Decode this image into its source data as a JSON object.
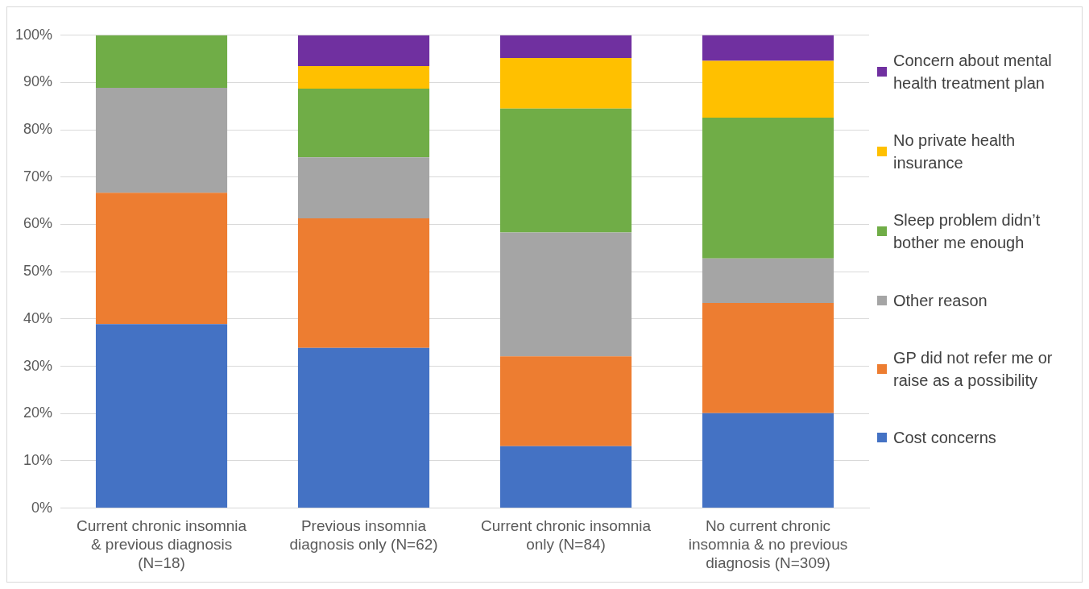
{
  "chart_data": {
    "type": "bar",
    "stacked": true,
    "categories": [
      "Current chronic insomnia & previous diagnosis (N=18)",
      "Previous insomnia diagnosis only (N=62)",
      "Current chronic insomnia only (N=84)",
      "No current chronic insomnia & no previous diagnosis (N=309)"
    ],
    "series": [
      {
        "name": "Cost concerns",
        "color": "#4472c4",
        "values": [
          38.9,
          33.9,
          13.1,
          20.1
        ]
      },
      {
        "name": "GP did not refer me or raise as a possibility",
        "color": "#ed7d31",
        "values": [
          27.8,
          27.4,
          19.0,
          23.3
        ]
      },
      {
        "name": "Other reason",
        "color": "#a5a5a5",
        "values": [
          22.2,
          12.9,
          26.2,
          9.4
        ]
      },
      {
        "name": "Sleep problem didn’t bother me enough",
        "color": "#70ad47",
        "values": [
          11.1,
          14.5,
          26.2,
          29.8
        ]
      },
      {
        "name": "No private health insurance",
        "color": "#ffc000",
        "values": [
          0,
          4.8,
          10.7,
          12.0
        ]
      },
      {
        "name": "Concern about mental health treatment plan",
        "color": "#7030a0",
        "values": [
          0,
          6.5,
          4.8,
          5.5
        ]
      }
    ],
    "ylim": [
      0,
      100
    ],
    "yticks": [
      {
        "value": 0,
        "label": "0%"
      },
      {
        "value": 10,
        "label": "10%"
      },
      {
        "value": 20,
        "label": "20%"
      },
      {
        "value": 30,
        "label": "30%"
      },
      {
        "value": 40,
        "label": "40%"
      },
      {
        "value": 50,
        "label": "50%"
      },
      {
        "value": 60,
        "label": "60%"
      },
      {
        "value": 70,
        "label": "70%"
      },
      {
        "value": 80,
        "label": "80%"
      },
      {
        "value": 90,
        "label": "90%"
      },
      {
        "value": 100,
        "label": "100%"
      }
    ],
    "grid": "y",
    "legend": "right"
  }
}
